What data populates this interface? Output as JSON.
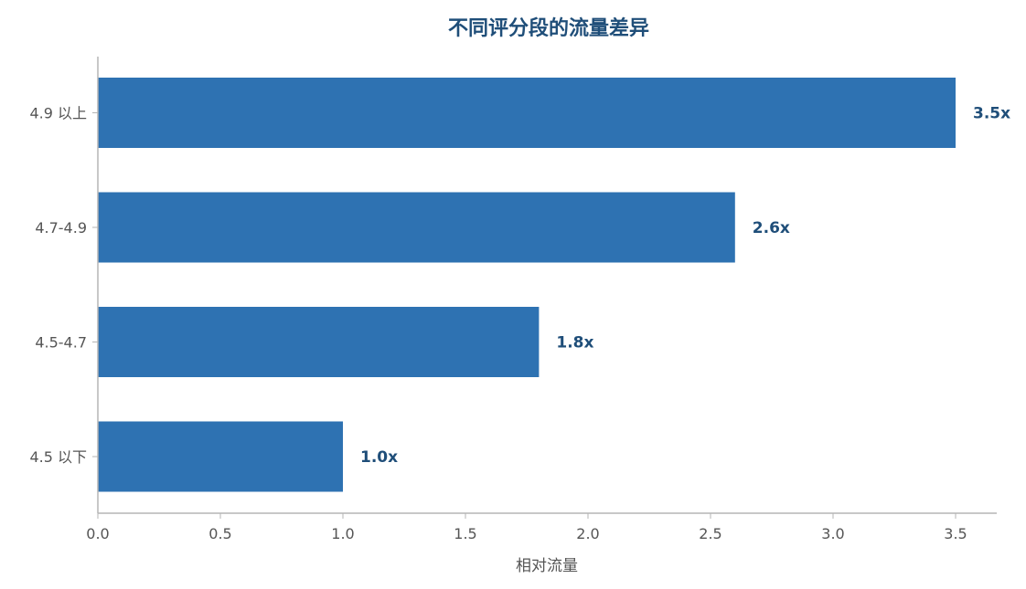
{
  "chart_data": {
    "type": "bar",
    "orientation": "horizontal",
    "title": "不同评分段的流量差异",
    "xlabel": "相对流量",
    "ylabel": "",
    "categories": [
      "4.9 以上",
      "4.7-4.9",
      "4.5-4.7",
      "4.5 以下"
    ],
    "values": [
      3.5,
      2.6,
      1.8,
      1.0
    ],
    "data_labels": [
      "3.5x",
      "2.6x",
      "1.8x",
      "1.0x"
    ],
    "xlim": [
      0,
      3.68
    ],
    "x_ticks": [
      0.0,
      0.5,
      1.0,
      1.5,
      2.0,
      2.5,
      3.0,
      3.5
    ],
    "x_tick_labels": [
      "0.0",
      "0.5",
      "1.0",
      "1.5",
      "2.0",
      "2.5",
      "3.0",
      "3.5"
    ],
    "grid": false,
    "legend": "none"
  },
  "colors": {
    "bar": "#2e72b2",
    "title": "#1f4e79",
    "data_label": "#1f4e79",
    "axis": "#b5b5b5",
    "tick_text": "#555555"
  }
}
